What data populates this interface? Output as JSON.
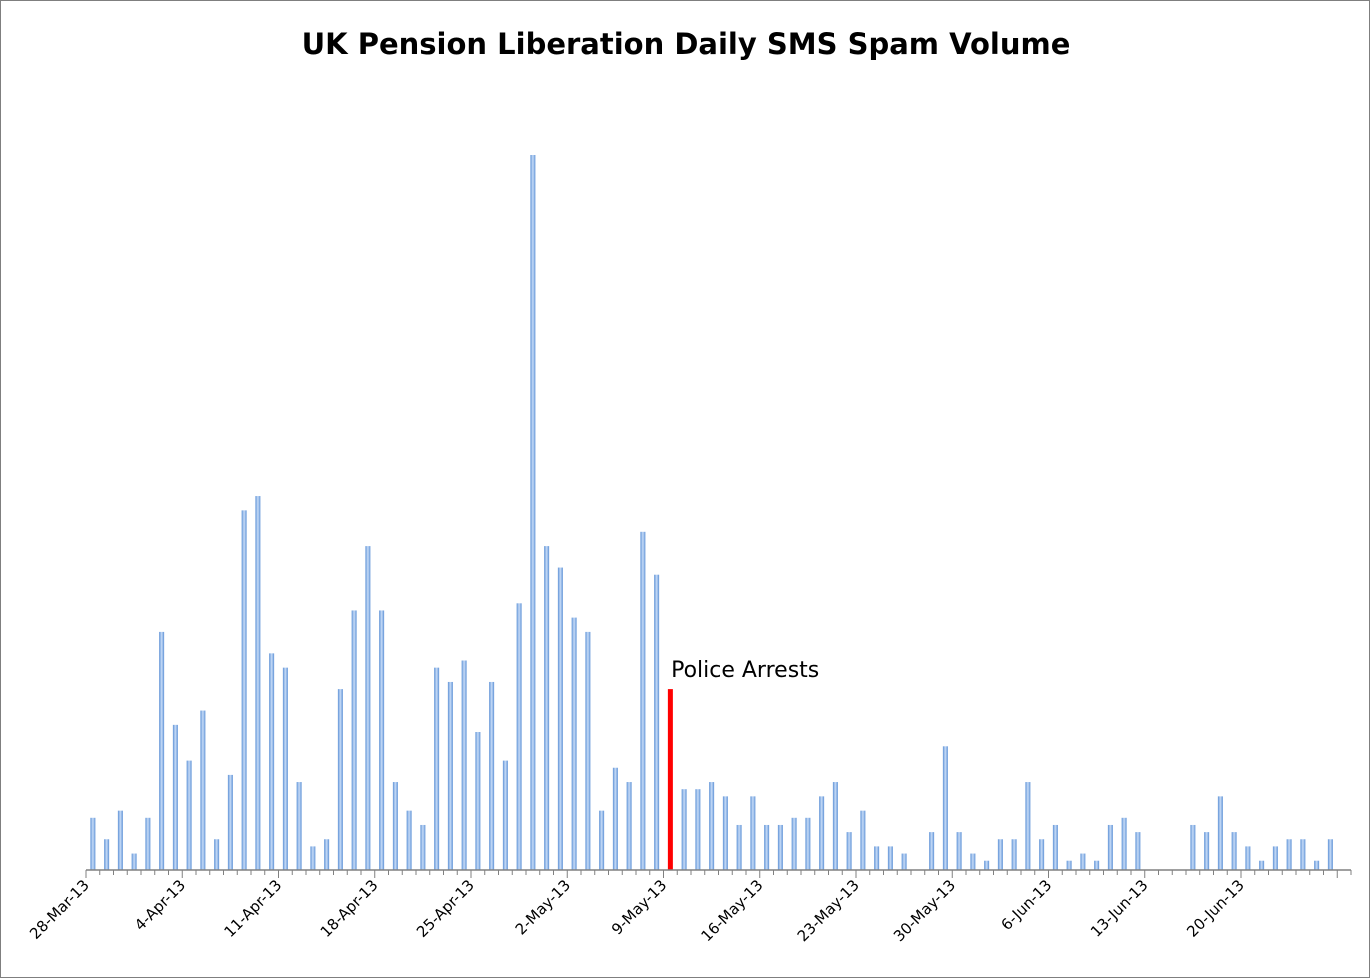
{
  "chart_data": {
    "type": "bar",
    "title": "UK Pension Liberation Daily SMS Spam Volume",
    "xlabel": "",
    "ylabel": "",
    "ylim": [
      0,
      100
    ],
    "grid": false,
    "x_start_date": "2013-03-28",
    "x_tick_labels": [
      "28-Mar-13",
      "4-Apr-13",
      "11-Apr-13",
      "18-Apr-13",
      "25-Apr-13",
      "2-May-13",
      "9-May-13",
      "16-May-13",
      "23-May-13",
      "30-May-13",
      "6-Jun-13",
      "13-Jun-13",
      "20-Jun-13"
    ],
    "series": [
      {
        "dates": [
          "2013-03-28",
          "2013-03-29",
          "2013-03-30",
          "2013-03-31",
          "2013-04-01",
          "2013-04-02",
          "2013-04-03",
          "2013-04-04",
          "2013-04-05",
          "2013-04-06",
          "2013-04-07",
          "2013-04-08",
          "2013-04-09",
          "2013-04-10",
          "2013-04-11",
          "2013-04-12",
          "2013-04-13",
          "2013-04-14",
          "2013-04-15",
          "2013-04-16",
          "2013-04-17",
          "2013-04-18",
          "2013-04-19",
          "2013-04-20",
          "2013-04-21",
          "2013-04-22",
          "2013-04-23",
          "2013-04-24",
          "2013-04-25",
          "2013-04-26",
          "2013-04-27",
          "2013-04-28",
          "2013-04-29",
          "2013-04-30",
          "2013-05-01",
          "2013-05-02",
          "2013-05-03",
          "2013-05-04",
          "2013-05-05",
          "2013-05-06",
          "2013-05-07",
          "2013-05-08",
          "2013-05-09",
          "2013-05-10",
          "2013-05-11",
          "2013-05-12",
          "2013-05-13",
          "2013-05-14",
          "2013-05-15",
          "2013-05-16",
          "2013-05-17",
          "2013-05-18",
          "2013-05-19",
          "2013-05-20",
          "2013-05-21",
          "2013-05-22",
          "2013-05-23",
          "2013-05-24",
          "2013-05-25",
          "2013-05-26",
          "2013-05-27",
          "2013-05-28",
          "2013-05-29",
          "2013-05-30",
          "2013-05-31",
          "2013-06-01",
          "2013-06-02",
          "2013-06-03",
          "2013-06-04",
          "2013-06-05",
          "2013-06-06",
          "2013-06-07",
          "2013-06-08",
          "2013-06-09",
          "2013-06-10",
          "2013-06-11",
          "2013-06-12",
          "2013-06-13",
          "2013-06-14",
          "2013-06-15",
          "2013-06-16",
          "2013-06-17",
          "2013-06-18",
          "2013-06-19",
          "2013-06-20",
          "2013-06-21",
          "2013-06-22",
          "2013-06-23",
          "2013-06-24",
          "2013-06-25",
          "2013-06-26",
          "2013-06-27"
        ],
        "values": [
          7.3,
          4.3,
          8.3,
          2.3,
          7.3,
          33.3,
          20.3,
          15.3,
          22.3,
          4.3,
          13.3,
          50.3,
          52.3,
          30.3,
          28.3,
          12.3,
          3.3,
          4.3,
          25.3,
          36.3,
          45.3,
          36.3,
          12.3,
          8.3,
          6.3,
          28.3,
          26.3,
          29.3,
          19.3,
          26.3,
          15.3,
          37.3,
          100.0,
          45.3,
          42.3,
          35.3,
          33.3,
          8.3,
          14.3,
          12.3,
          47.3,
          41.3,
          25.3,
          11.3,
          11.3,
          12.3,
          10.3,
          6.3,
          10.3,
          6.3,
          6.3,
          7.3,
          7.3,
          10.3,
          12.3,
          5.3,
          8.3,
          3.3,
          3.3,
          2.3,
          0,
          5.3,
          17.3,
          5.3,
          2.3,
          1.3,
          4.3,
          4.3,
          12.3,
          4.3,
          6.3,
          1.3,
          2.3,
          1.3,
          6.3,
          7.3,
          5.3,
          0,
          0,
          0,
          6.3,
          5.3,
          10.3,
          5.3,
          3.3,
          1.3,
          3.3,
          4.3,
          4.3,
          1.3,
          4.3,
          0
        ]
      }
    ],
    "highlight_index": 42,
    "colors": {
      "bar_light": "#c6dbf7",
      "bar_dark": "#4f86d0",
      "highlight": "#ff0000",
      "axis": "#808080"
    },
    "annotations": [
      {
        "text": "Police Arrests",
        "date": "2013-05-10"
      }
    ]
  }
}
